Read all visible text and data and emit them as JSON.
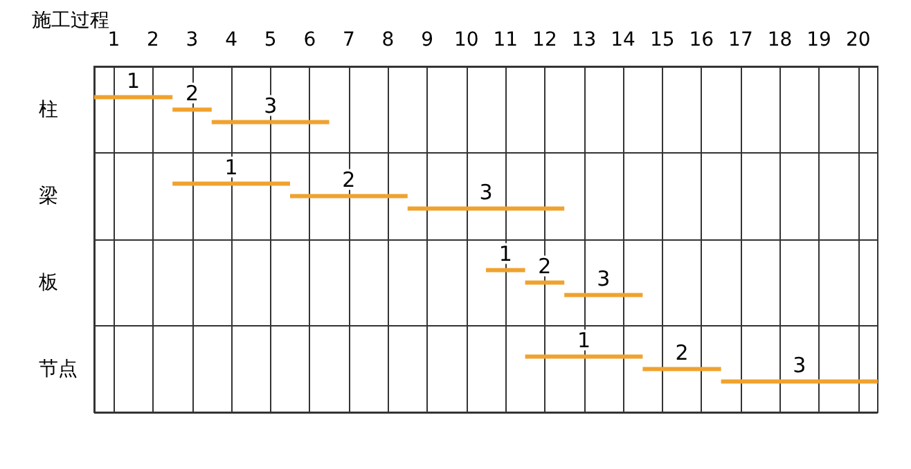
{
  "chart_data": {
    "type": "bar",
    "orientation": "horizontal",
    "ylabel": "施工过程",
    "categories": [
      "柱",
      "梁",
      "板",
      "节点"
    ],
    "series": [
      {
        "name": "1",
        "color": "#f0a22e",
        "base": [
          0,
          2,
          10,
          11
        ],
        "values": [
          2,
          3,
          1,
          3
        ]
      },
      {
        "name": "2",
        "color": "#f0a22e",
        "base": [
          2,
          5,
          11,
          14
        ],
        "values": [
          1,
          3,
          1,
          2
        ]
      },
      {
        "name": "3",
        "color": "#f0a22e",
        "base": [
          3,
          8,
          12,
          16
        ],
        "values": [
          3,
          4,
          2,
          4
        ]
      }
    ],
    "xlim": [
      0,
      20
    ],
    "xticks": [
      {
        "value": 0.5,
        "label": "1"
      },
      {
        "value": 1.5,
        "label": "2"
      },
      {
        "value": 2.5,
        "label": "3"
      },
      {
        "value": 3.5,
        "label": "4"
      },
      {
        "value": 4.5,
        "label": "5"
      },
      {
        "value": 5.5,
        "label": "6"
      },
      {
        "value": 6.5,
        "label": "7"
      },
      {
        "value": 7.5,
        "label": "8"
      },
      {
        "value": 8.5,
        "label": "9"
      },
      {
        "value": 9.5,
        "label": "10"
      },
      {
        "value": 10.5,
        "label": "11"
      },
      {
        "value": 11.5,
        "label": "12"
      },
      {
        "value": 12.5,
        "label": "13"
      },
      {
        "value": 13.5,
        "label": "14"
      },
      {
        "value": 14.5,
        "label": "15"
      },
      {
        "value": 15.5,
        "label": "16"
      },
      {
        "value": 16.5,
        "label": "17"
      },
      {
        "value": 17.5,
        "label": "18"
      },
      {
        "value": 18.5,
        "label": "19"
      },
      {
        "value": 19.5,
        "label": "20"
      }
    ],
    "grid": true
  }
}
